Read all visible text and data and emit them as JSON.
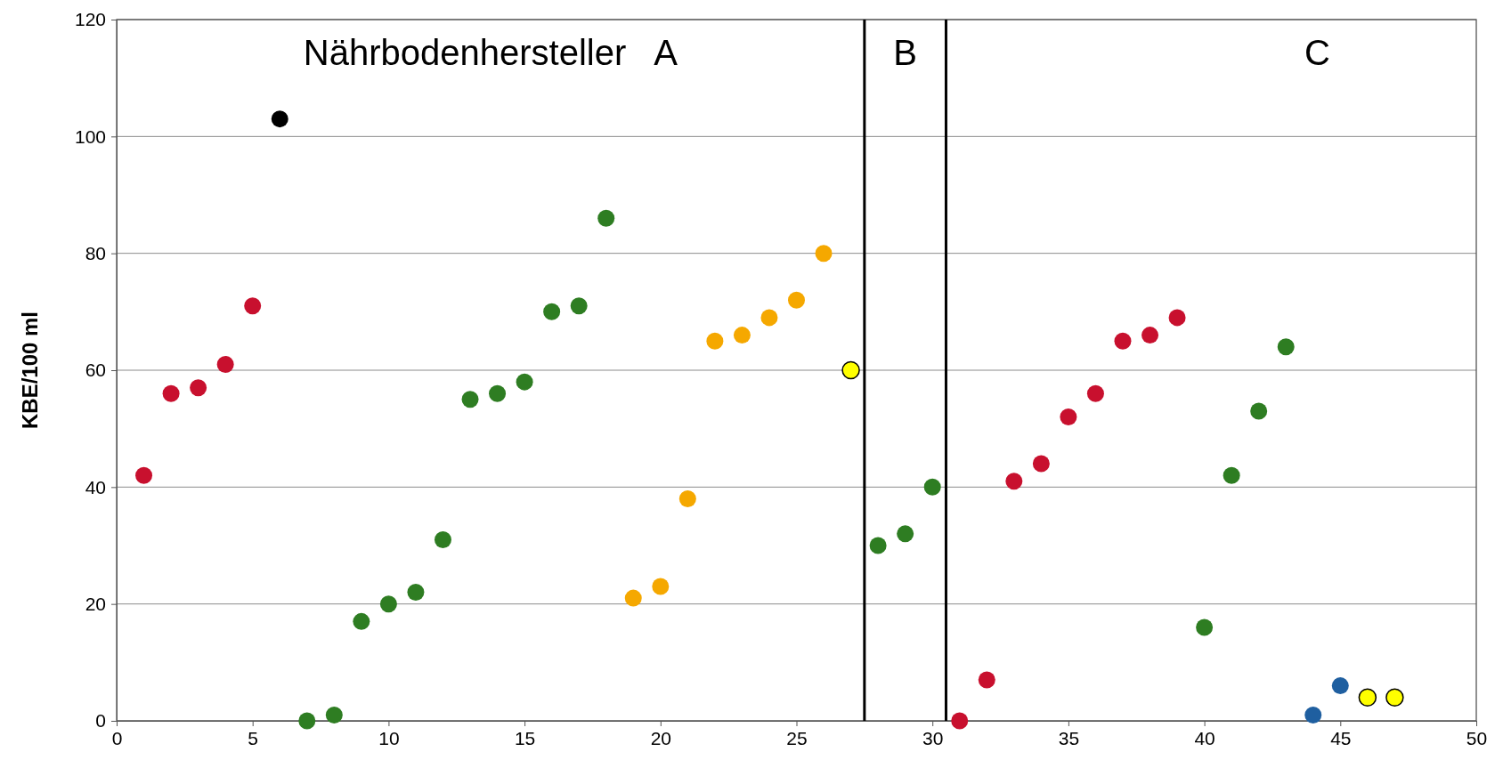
{
  "chart_data": {
    "type": "scatter",
    "ylabel": "KBE/100 ml",
    "xlim": [
      0,
      50
    ],
    "xticks": [
      0,
      5,
      10,
      15,
      20,
      25,
      30,
      35,
      40,
      45,
      50
    ],
    "ylim": [
      0,
      120
    ],
    "yticks": [
      0,
      20,
      40,
      60,
      80,
      100,
      120
    ],
    "grid": "y",
    "marker": "circle",
    "ref_lines": [
      {
        "axis": "x",
        "value": 27.5,
        "color": "#000000"
      },
      {
        "axis": "x",
        "value": 30.5,
        "color": "#000000"
      }
    ],
    "annotations": [
      "Nährbodenhersteller   A",
      "B",
      "C"
    ],
    "series": [
      {
        "color": "#c8102e",
        "x": [
          1,
          2,
          3,
          4,
          5,
          31,
          32,
          33,
          34,
          35,
          36,
          37,
          38,
          39
        ],
        "values": [
          42,
          56,
          57,
          61,
          71,
          0,
          7,
          41,
          44,
          52,
          56,
          65,
          66,
          69
        ]
      },
      {
        "color": "#000000",
        "x": [
          6
        ],
        "values": [
          103
        ]
      },
      {
        "color": "#2e7d22",
        "x": [
          7,
          8,
          9,
          10,
          11,
          12,
          13,
          14,
          15,
          16,
          17,
          18,
          28,
          29,
          30,
          40,
          41,
          42,
          43
        ],
        "values": [
          0,
          1,
          17,
          20,
          22,
          31,
          55,
          56,
          58,
          70,
          71,
          86,
          30,
          32,
          40,
          16,
          42,
          53,
          64
        ]
      },
      {
        "color": "#f5a800",
        "x": [
          19,
          20,
          21,
          22,
          23,
          24,
          25,
          26
        ],
        "values": [
          21,
          23,
          38,
          65,
          66,
          69,
          72,
          80
        ]
      },
      {
        "color": "#ffff00",
        "x": [
          27,
          46,
          47
        ],
        "values": [
          60,
          4,
          4
        ]
      },
      {
        "color": "#1f5fa0",
        "x": [
          44,
          45
        ],
        "values": [
          1,
          6
        ]
      }
    ]
  }
}
